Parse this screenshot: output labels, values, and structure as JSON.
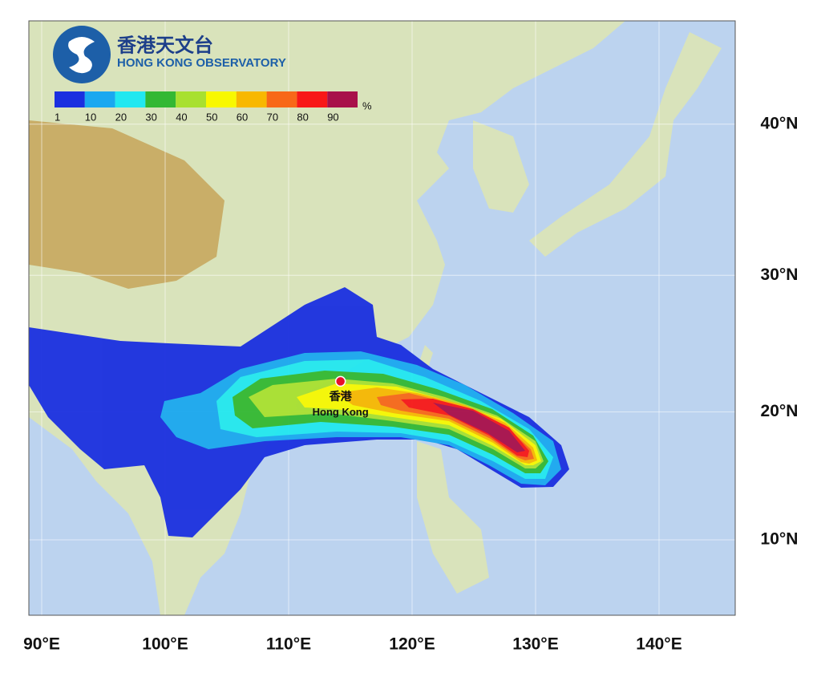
{
  "logo": {
    "chinese": "香港天文台",
    "english": "HONG KONG OBSERVATORY"
  },
  "legend": {
    "labels": [
      1,
      10,
      20,
      30,
      40,
      50,
      60,
      70,
      80,
      90
    ],
    "unit": "%",
    "colors": [
      "#1a2fe0",
      "#1aa8f0",
      "#22e8f0",
      "#33b833",
      "#a8e030",
      "#f8f800",
      "#f8b800",
      "#f86818",
      "#f81818",
      "#a8104a"
    ]
  },
  "map": {
    "lon_ticks": [
      {
        "value": 90,
        "label": "90°E"
      },
      {
        "value": 100,
        "label": "100°E"
      },
      {
        "value": 110,
        "label": "110°E"
      },
      {
        "value": 120,
        "label": "120°E"
      },
      {
        "value": 130,
        "label": "130°E"
      },
      {
        "value": 140,
        "label": "140°E"
      }
    ],
    "lat_ticks": [
      {
        "value": 40,
        "label": "40°N"
      },
      {
        "value": 30,
        "label": "30°N"
      },
      {
        "value": 20,
        "label": "20°N"
      },
      {
        "value": 10,
        "label": "10°N"
      }
    ],
    "place": {
      "chinese": "香港",
      "english": "Hong Kong",
      "lon": 114.2,
      "lat": 22.3
    }
  }
}
